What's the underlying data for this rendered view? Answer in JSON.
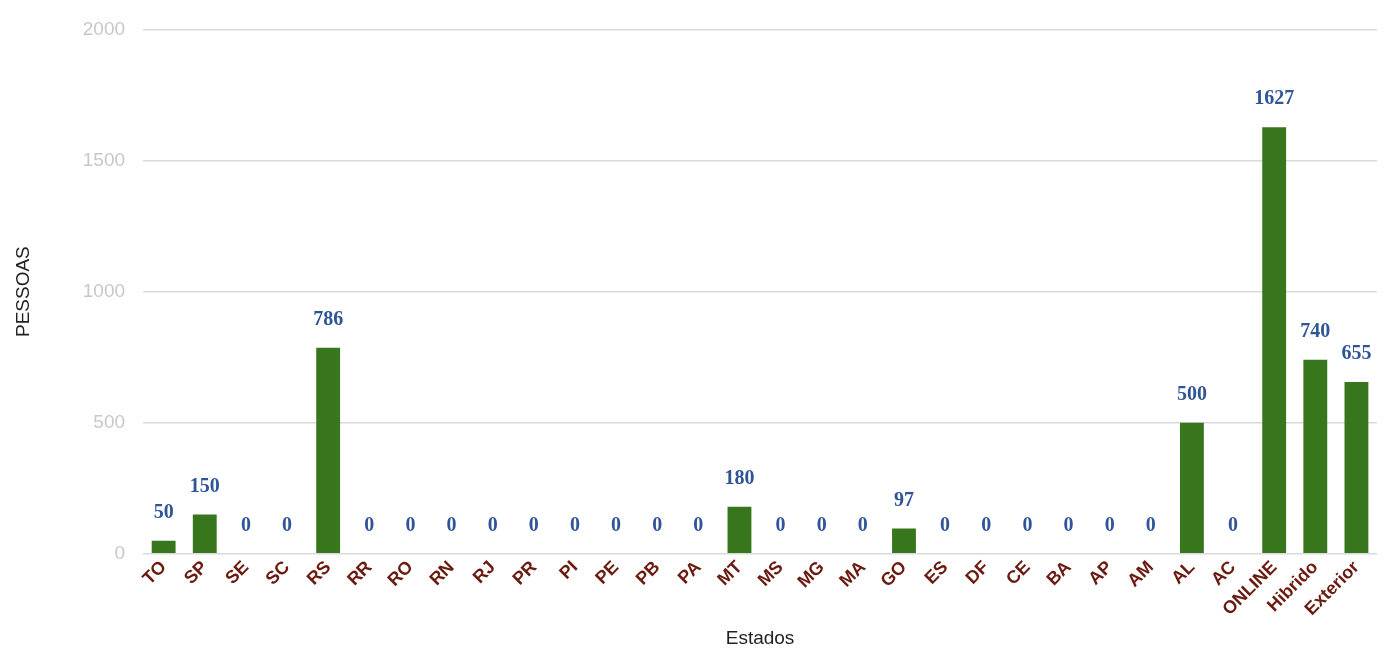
{
  "chart_data": {
    "type": "bar",
    "xlabel": "Estados",
    "ylabel": "PESSOAS",
    "categories": [
      "TO",
      "SP",
      "SE",
      "SC",
      "RS",
      "RR",
      "RO",
      "RN",
      "RJ",
      "PR",
      "PI",
      "PE",
      "PB",
      "PA",
      "MT",
      "MS",
      "MG",
      "MA",
      "GO",
      "ES",
      "DF",
      "CE",
      "BA",
      "AP",
      "AM",
      "AL",
      "AC",
      "ONLINE",
      "Hibrido",
      "Exterior"
    ],
    "values": [
      50,
      150,
      0,
      0,
      786,
      0,
      0,
      0,
      0,
      0,
      0,
      0,
      0,
      0,
      180,
      0,
      0,
      0,
      97,
      0,
      0,
      0,
      0,
      0,
      0,
      500,
      0,
      1627,
      740,
      655
    ],
    "color": "#38761d",
    "ylim": [
      0,
      2000
    ],
    "yticks": [
      0,
      500,
      1000,
      1500,
      2000
    ],
    "grid": "y",
    "data_labels": true
  }
}
